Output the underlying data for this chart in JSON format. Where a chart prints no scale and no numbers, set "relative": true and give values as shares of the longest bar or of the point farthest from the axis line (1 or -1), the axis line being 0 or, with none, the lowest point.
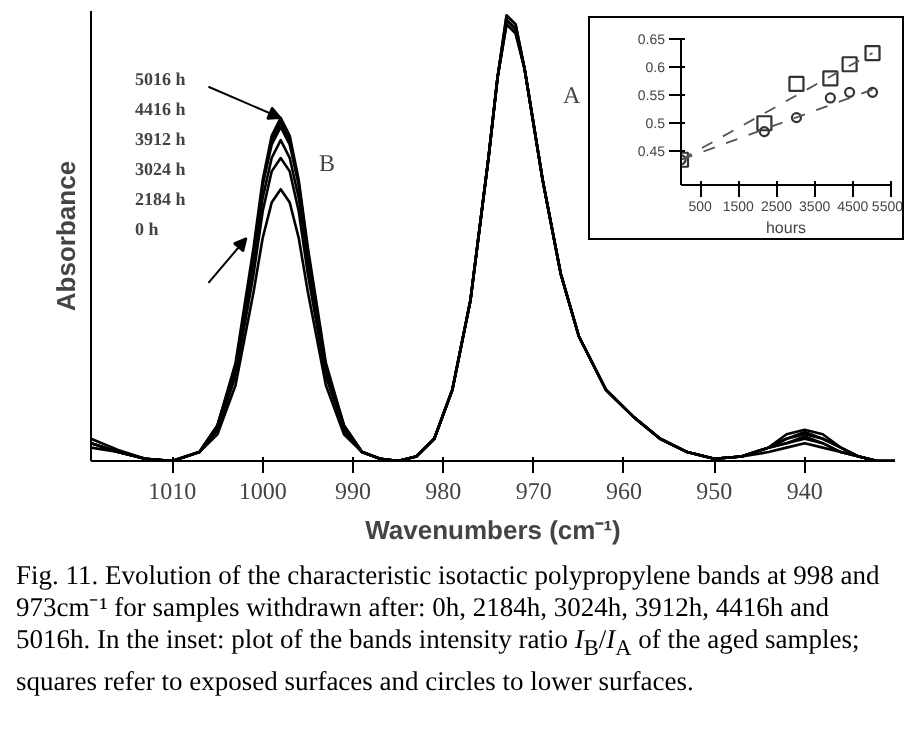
{
  "chart_data": [
    {
      "type": "line",
      "relative": true,
      "xlabel": "Wavenumbers (cm⁻¹)",
      "ylabel": "Absorbance",
      "xlim": [
        1019,
        930
      ],
      "xticks": [
        1010,
        1000,
        990,
        980,
        970,
        960,
        950,
        940
      ],
      "grid": false,
      "x": [
        1019,
        1016,
        1013,
        1010,
        1007,
        1005,
        1003,
        1001,
        1000,
        999,
        998,
        997,
        996,
        995,
        993,
        991,
        989,
        987,
        985,
        983,
        981,
        979,
        977,
        975,
        974,
        973,
        972,
        971,
        969,
        967,
        965,
        962,
        959,
        956,
        953,
        950,
        947,
        944,
        942,
        940,
        938,
        936,
        934,
        932,
        930
      ],
      "series": [
        {
          "color": "#000000",
          "values": [
            0.03,
            0.02,
            0.005,
            0,
            0.02,
            0.06,
            0.17,
            0.38,
            0.5,
            0.58,
            0.61,
            0.58,
            0.5,
            0.38,
            0.17,
            0.06,
            0.02,
            0.005,
            0,
            0.01,
            0.05,
            0.16,
            0.36,
            0.68,
            0.86,
            0.98,
            0.96,
            0.88,
            0.63,
            0.42,
            0.28,
            0.16,
            0.1,
            0.05,
            0.02,
            0.005,
            0.01,
            0.02,
            0.03,
            0.04,
            0.03,
            0.02,
            0.01,
            0,
            0
          ]
        },
        {
          "color": "#000000",
          "values": [
            0.04,
            0.02,
            0.005,
            0,
            0.02,
            0.07,
            0.19,
            0.42,
            0.56,
            0.65,
            0.68,
            0.65,
            0.56,
            0.42,
            0.19,
            0.07,
            0.02,
            0.005,
            0,
            0.01,
            0.05,
            0.16,
            0.36,
            0.68,
            0.86,
            0.98,
            0.96,
            0.88,
            0.63,
            0.42,
            0.28,
            0.16,
            0.1,
            0.05,
            0.02,
            0.005,
            0.01,
            0.03,
            0.04,
            0.05,
            0.04,
            0.02,
            0.01,
            0,
            0
          ]
        },
        {
          "color": "#000000",
          "values": [
            0.04,
            0.02,
            0.005,
            0,
            0.02,
            0.07,
            0.2,
            0.45,
            0.59,
            0.68,
            0.72,
            0.68,
            0.59,
            0.45,
            0.2,
            0.07,
            0.02,
            0.005,
            0,
            0.01,
            0.05,
            0.16,
            0.36,
            0.68,
            0.86,
            0.99,
            0.97,
            0.88,
            0.63,
            0.42,
            0.28,
            0.16,
            0.1,
            0.05,
            0.02,
            0.005,
            0.01,
            0.03,
            0.04,
            0.055,
            0.04,
            0.02,
            0.01,
            0,
            0
          ]
        },
        {
          "color": "#000000",
          "values": [
            0.04,
            0.02,
            0.005,
            0,
            0.02,
            0.08,
            0.21,
            0.47,
            0.62,
            0.71,
            0.75,
            0.71,
            0.62,
            0.47,
            0.21,
            0.08,
            0.02,
            0.005,
            0,
            0.01,
            0.05,
            0.16,
            0.36,
            0.68,
            0.86,
            0.99,
            0.97,
            0.88,
            0.63,
            0.42,
            0.28,
            0.16,
            0.1,
            0.05,
            0.02,
            0.005,
            0.01,
            0.03,
            0.05,
            0.06,
            0.05,
            0.03,
            0.01,
            0,
            0
          ]
        },
        {
          "color": "#000000",
          "values": [
            0.04,
            0.02,
            0.005,
            0,
            0.02,
            0.08,
            0.21,
            0.47,
            0.62,
            0.72,
            0.76,
            0.72,
            0.62,
            0.47,
            0.21,
            0.08,
            0.02,
            0.005,
            0,
            0.01,
            0.05,
            0.16,
            0.36,
            0.68,
            0.86,
            1.0,
            0.98,
            0.88,
            0.63,
            0.42,
            0.28,
            0.16,
            0.1,
            0.05,
            0.02,
            0.005,
            0.01,
            0.03,
            0.05,
            0.065,
            0.05,
            0.03,
            0.01,
            0,
            0
          ]
        },
        {
          "color": "#000000",
          "values": [
            0.05,
            0.025,
            0.005,
            0,
            0.02,
            0.08,
            0.22,
            0.48,
            0.63,
            0.73,
            0.77,
            0.73,
            0.63,
            0.48,
            0.22,
            0.08,
            0.02,
            0.005,
            0,
            0.01,
            0.05,
            0.16,
            0.36,
            0.68,
            0.86,
            1.0,
            0.98,
            0.88,
            0.63,
            0.42,
            0.28,
            0.16,
            0.1,
            0.05,
            0.02,
            0.005,
            0.01,
            0.03,
            0.06,
            0.07,
            0.06,
            0.03,
            0.01,
            0,
            0
          ]
        }
      ],
      "annotations": [
        "5016 h",
        "4416 h",
        "3912 h",
        "3024 h",
        "2184 h",
        "0 h",
        "B",
        "A",
        "Fig. 11.  Evolution of the characteristic isotactic polypropylene bands at 998 and 973cm⁻¹ for samples withdrawn after: 0h, 2184h, 3024h, 3912h, 4416h and 5016h. In the inset: plot of the bands intensity ratio I$_{B}$/I$_{A}$ of the aged samples; squares refer to exposed surfaces and circles to lower surfaces."
      ]
    },
    {
      "type": "scatter",
      "xlabel": "hours",
      "xlim": [
        0,
        5500
      ],
      "xticks": [
        500,
        1500,
        2500,
        3500,
        4500,
        5500
      ],
      "ylim": [
        0.39,
        0.65
      ],
      "yticks": [
        0.45,
        0.5,
        0.55,
        0.6,
        0.65
      ],
      "grid": false,
      "series": [
        {
          "color": "#333333",
          "marker": "square",
          "x": [
            0,
            2184,
            3024,
            3912,
            4416,
            5016
          ],
          "values": [
            0.435,
            0.5,
            0.57,
            0.58,
            0.605,
            0.625
          ]
        },
        {
          "color": "#333333",
          "marker": "circle",
          "x": [
            0,
            2184,
            3024,
            3912,
            4416,
            5016
          ],
          "values": [
            0.435,
            0.485,
            0.51,
            0.545,
            0.555,
            0.555
          ]
        },
        {
          "type": "line",
          "line_style": "dashed",
          "color": "#555555",
          "x": [
            0,
            5016
          ],
          "values": [
            0.435,
            0.625
          ]
        },
        {
          "type": "line",
          "line_style": "dashed",
          "color": "#555555",
          "x": [
            0,
            5016
          ],
          "values": [
            0.435,
            0.56
          ]
        }
      ]
    }
  ]
}
